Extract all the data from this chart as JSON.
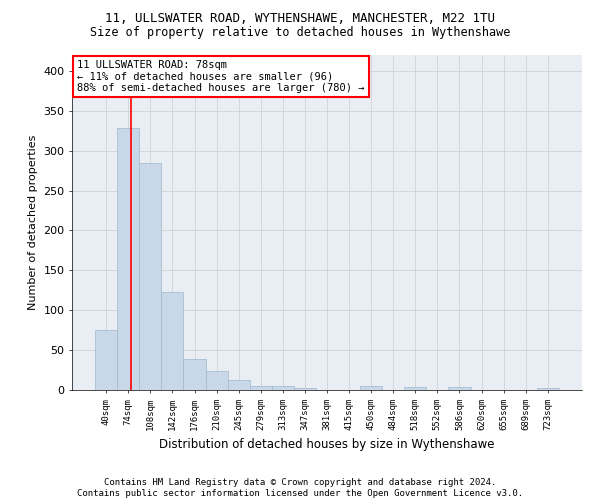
{
  "title1": "11, ULLSWATER ROAD, WYTHENSHAWE, MANCHESTER, M22 1TU",
  "title2": "Size of property relative to detached houses in Wythenshawe",
  "xlabel": "Distribution of detached houses by size in Wythenshawe",
  "ylabel": "Number of detached properties",
  "footer": "Contains HM Land Registry data © Crown copyright and database right 2024.\nContains public sector information licensed under the Open Government Licence v3.0.",
  "bin_labels": [
    "40sqm",
    "74sqm",
    "108sqm",
    "142sqm",
    "176sqm",
    "210sqm",
    "245sqm",
    "279sqm",
    "313sqm",
    "347sqm",
    "381sqm",
    "415sqm",
    "450sqm",
    "484sqm",
    "518sqm",
    "552sqm",
    "586sqm",
    "620sqm",
    "655sqm",
    "689sqm",
    "723sqm"
  ],
  "bar_heights": [
    75,
    328,
    284,
    123,
    39,
    24,
    12,
    5,
    5,
    3,
    0,
    0,
    5,
    0,
    4,
    0,
    4,
    0,
    0,
    0,
    3
  ],
  "bar_color": "#c8d8e8",
  "bar_edgecolor": "#a0b8cc",
  "grid_color": "#cccccc",
  "bg_color": "#e8eef4",
  "annotation_text_line1": "11 ULLSWATER ROAD: 78sqm",
  "annotation_text_line2": "← 11% of detached houses are smaller (96)",
  "annotation_text_line3": "88% of semi-detached houses are larger (780) →",
  "annotation_box_color": "white",
  "annotation_border_color": "red",
  "vline_color": "red",
  "vline_x_idx": 1.12,
  "ylim": [
    0,
    420
  ],
  "yticks": [
    0,
    50,
    100,
    150,
    200,
    250,
    300,
    350,
    400
  ]
}
